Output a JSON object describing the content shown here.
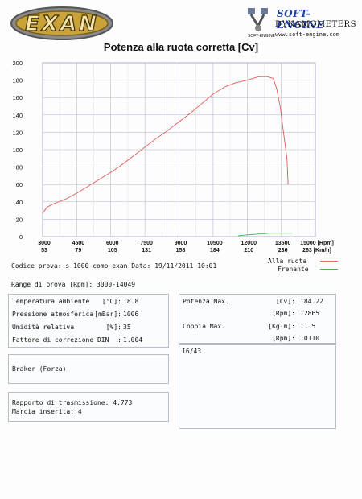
{
  "header": {
    "logo_text": "EXAN",
    "brand_name": "SOFT-ENGINE",
    "brand_sub": "DYNAMOMETERS",
    "brand_url": "www.soft-engine.com",
    "brand_tag": "SOFT-ENGINE"
  },
  "chart_title": "Potenza alla ruota corretta [Cv]",
  "chart_data": {
    "type": "line",
    "title": "Potenza alla ruota corretta [Cv]",
    "y_ticks": [
      "200",
      "180",
      "160",
      "140",
      "120",
      "100",
      "80",
      "60",
      "40",
      "20",
      "0"
    ],
    "ylim": [
      0,
      200
    ],
    "x_rpm_ticks": [
      "3000",
      "4500",
      "6000",
      "7500",
      "9000",
      "10500",
      "12000",
      "13500",
      "15000 [Rpm]"
    ],
    "x_kmh_ticks": [
      "53",
      "79",
      "105",
      "131",
      "158",
      "184",
      "210",
      "236",
      "263 [Km/h]"
    ],
    "xlim": [
      3000,
      15000
    ],
    "grid": true,
    "series": [
      {
        "name": "Alla ruota",
        "color": "#e05a5a",
        "points": [
          [
            3000,
            27
          ],
          [
            3200,
            34
          ],
          [
            3500,
            38
          ],
          [
            4000,
            43
          ],
          [
            4500,
            50
          ],
          [
            5000,
            58
          ],
          [
            5500,
            66
          ],
          [
            6000,
            74
          ],
          [
            6500,
            83
          ],
          [
            7000,
            93
          ],
          [
            7500,
            103
          ],
          [
            8000,
            113
          ],
          [
            8500,
            122
          ],
          [
            9000,
            132
          ],
          [
            9500,
            142
          ],
          [
            10000,
            153
          ],
          [
            10500,
            164
          ],
          [
            11000,
            172
          ],
          [
            11500,
            177
          ],
          [
            12000,
            180
          ],
          [
            12500,
            184
          ],
          [
            12865,
            184.2
          ],
          [
            13150,
            182
          ],
          [
            13300,
            170
          ],
          [
            13450,
            150
          ],
          [
            13600,
            120
          ],
          [
            13750,
            90
          ],
          [
            13800,
            60
          ]
        ]
      },
      {
        "name": "Frenante",
        "color": "#4caf50",
        "points": [
          [
            11600,
            1
          ],
          [
            12000,
            2
          ],
          [
            12500,
            3
          ],
          [
            13000,
            4
          ],
          [
            13500,
            4
          ],
          [
            14000,
            4
          ]
        ]
      }
    ]
  },
  "legend": {
    "alla_ruota": "Alla ruota",
    "frenante": "Frenante"
  },
  "codice_line": "Codice prova: s 1000 comp exan  Data: 19/11/2011 10:01",
  "range_line": "Range di prova [Rpm]: 3000-14049",
  "ambient": {
    "temp_label": "Temperatura ambiente",
    "temp_unit": "[°C]:",
    "temp_value": "18.8",
    "press_label": "Pressione atmosferica",
    "press_unit": "[mBar]:",
    "press_value": "1006",
    "hum_label": "Umidità relativa",
    "hum_unit": "[%]:",
    "hum_value": "35",
    "corr_label": "Fattore di correzione DIN",
    "corr_unit": ":",
    "corr_value": "1.004"
  },
  "power": {
    "pot_label": "Potenza Max.",
    "pot_unit": "[Cv]:",
    "pot_value": "184.22",
    "pot_rpm_unit": "[Rpm]:",
    "pot_rpm_value": "12865",
    "coppia_label": "Coppia Max.",
    "coppia_unit": "[Kg·m]:",
    "coppia_value": "11.5",
    "coppia_rpm_unit": "[Rpm]:",
    "coppia_rpm_value": "10110"
  },
  "number_box": "16/43",
  "braker_label": "Braker (Forza)",
  "transmission": {
    "rapporto": "Rapporto di trasmissione: 4.773",
    "marcia": "Marcia inserita: 4"
  }
}
